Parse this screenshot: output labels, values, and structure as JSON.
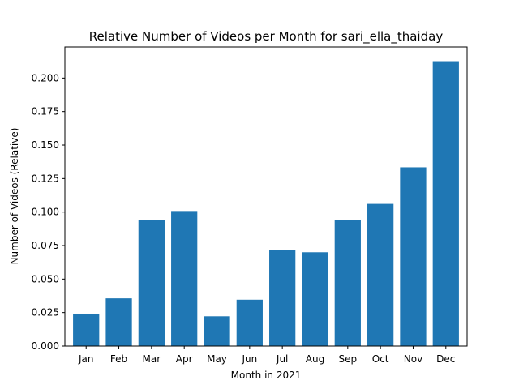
{
  "chart_data": {
    "type": "bar",
    "title": "Relative Number of Videos per Month for sari_ella_thaiday",
    "xlabel": "Month in 2021",
    "ylabel": "Number of Videos (Relative)",
    "categories": [
      "Jan",
      "Feb",
      "Mar",
      "Apr",
      "May",
      "Jun",
      "Jul",
      "Aug",
      "Sep",
      "Oct",
      "Nov",
      "Dec"
    ],
    "values": [
      0.0242,
      0.0356,
      0.094,
      0.1008,
      0.0222,
      0.0346,
      0.0719,
      0.07,
      0.094,
      0.1061,
      0.1334,
      0.2126
    ],
    "ylim": [
      0,
      0.2232
    ],
    "yticks": [
      0.0,
      0.025,
      0.05,
      0.075,
      0.1,
      0.125,
      0.15,
      0.175,
      0.2
    ],
    "ytick_labels": [
      "0.000",
      "0.025",
      "0.050",
      "0.075",
      "0.100",
      "0.125",
      "0.150",
      "0.175",
      "0.200"
    ],
    "bar_color": "#1f77b4",
    "grid": false,
    "legend": "none"
  }
}
